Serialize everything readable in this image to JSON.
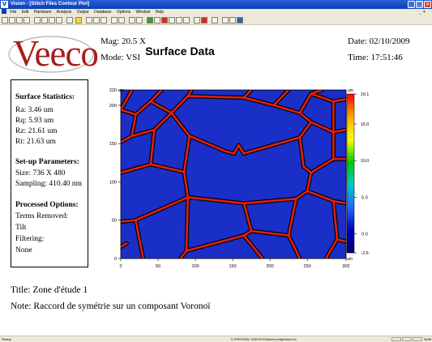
{
  "window": {
    "title": "Vision - [Stitch Files Contour Plot]",
    "app_icon_letter": "V",
    "minimize_glyph": "_",
    "maximize_glyph": "□",
    "close_glyph": "×"
  },
  "menu": {
    "items": [
      "File",
      "Edit",
      "Hardware",
      "Analysis",
      "Output",
      "Database",
      "Options",
      "Window",
      "Help"
    ],
    "mdi_controls": "_ ♦"
  },
  "logo": {
    "text": "Veeco"
  },
  "header": {
    "mag": "Mag: 20.5 X",
    "mode": "Mode: VSI",
    "title": "Surface Data",
    "date": "Date: 02/10/2009",
    "time": "Time: 17:51:46"
  },
  "stats": {
    "surface_heading": "Surface Statistics:",
    "ra": "Ra: 3.46 um",
    "rq": "Rq: 5.93 um",
    "rz": "Rz: 21.61 um",
    "rt": "Rt: 21.63 um",
    "setup_heading": "Set-up Parameters:",
    "size": "Size: 736 X 480",
    "sampling": "Sampling: 410.40 nm",
    "processed_heading": "Processed Options:",
    "terms_removed": "Terms Removed:",
    "tilt": "Tilt",
    "filtering": "Filtering:",
    "filter_none": "None"
  },
  "chart_data": {
    "type": "heatmap",
    "x_ticks": [
      0,
      50,
      100,
      150,
      200,
      250,
      302
    ],
    "y_ticks": [
      0,
      50,
      100,
      150,
      200,
      220
    ],
    "xlim": [
      0,
      302
    ],
    "ylim": [
      0,
      220
    ],
    "x_unit": "um",
    "y_unit": "um",
    "colorbar": {
      "unit": "um",
      "ticks": [
        19.1,
        15.0,
        10.0,
        5.0,
        0.0,
        -2.6
      ],
      "range": [
        -2.6,
        19.1
      ],
      "colors": [
        "#ff0000",
        "#ffaa00",
        "#ffff00",
        "#00cc00",
        "#00c8c8",
        "#2266ff",
        "#0000c0",
        "#000070"
      ]
    },
    "cell_color": "#1a2ec8",
    "edge_color": "#e02010",
    "edges": [
      [
        [
          0,
          194
        ],
        [
          15,
          220
        ]
      ],
      [
        [
          0,
          194
        ],
        [
          20,
          188
        ]
      ],
      [
        [
          20,
          188
        ],
        [
          40,
          205
        ]
      ],
      [
        [
          40,
          205
        ],
        [
          55,
          220
        ]
      ],
      [
        [
          20,
          188
        ],
        [
          15,
          160
        ]
      ],
      [
        [
          15,
          160
        ],
        [
          0,
          152
        ]
      ],
      [
        [
          15,
          160
        ],
        [
          45,
          168
        ]
      ],
      [
        [
          45,
          168
        ],
        [
          68,
          190
        ]
      ],
      [
        [
          68,
          190
        ],
        [
          40,
          205
        ]
      ],
      [
        [
          68,
          190
        ],
        [
          90,
          212
        ]
      ],
      [
        [
          90,
          212
        ],
        [
          95,
          220
        ]
      ],
      [
        [
          90,
          212
        ],
        [
          165,
          210
        ]
      ],
      [
        [
          165,
          210
        ],
        [
          175,
          220
        ]
      ],
      [
        [
          165,
          210
        ],
        [
          205,
          200
        ]
      ],
      [
        [
          205,
          200
        ],
        [
          225,
          220
        ]
      ],
      [
        [
          205,
          200
        ],
        [
          240,
          190
        ]
      ],
      [
        [
          240,
          190
        ],
        [
          255,
          215
        ]
      ],
      [
        [
          255,
          215
        ],
        [
          270,
          220
        ]
      ],
      [
        [
          255,
          215
        ],
        [
          285,
          205
        ]
      ],
      [
        [
          285,
          205
        ],
        [
          302,
          208
        ]
      ],
      [
        [
          240,
          190
        ],
        [
          255,
          178
        ]
      ],
      [
        [
          255,
          178
        ],
        [
          285,
          165
        ]
      ],
      [
        [
          285,
          165
        ],
        [
          302,
          168
        ]
      ],
      [
        [
          285,
          165
        ],
        [
          285,
          205
        ]
      ],
      [
        [
          45,
          168
        ],
        [
          40,
          123
        ]
      ],
      [
        [
          40,
          123
        ],
        [
          0,
          112
        ]
      ],
      [
        [
          40,
          123
        ],
        [
          85,
          113
        ]
      ],
      [
        [
          85,
          113
        ],
        [
          92,
          160
        ]
      ],
      [
        [
          92,
          160
        ],
        [
          68,
          190
        ]
      ],
      [
        [
          92,
          160
        ],
        [
          140,
          140
        ]
      ],
      [
        [
          140,
          140
        ],
        [
          152,
          137
        ]
      ],
      [
        [
          152,
          137
        ],
        [
          158,
          148
        ]
      ],
      [
        [
          158,
          148
        ],
        [
          165,
          137
        ]
      ],
      [
        [
          165,
          137
        ],
        [
          175,
          140
        ]
      ],
      [
        [
          175,
          140
        ],
        [
          240,
          158
        ]
      ],
      [
        [
          240,
          158
        ],
        [
          255,
          178
        ]
      ],
      [
        [
          240,
          158
        ],
        [
          245,
          120
        ]
      ],
      [
        [
          245,
          120
        ],
        [
          255,
          112
        ]
      ],
      [
        [
          255,
          112
        ],
        [
          285,
          130
        ]
      ],
      [
        [
          285,
          130
        ],
        [
          285,
          165
        ]
      ],
      [
        [
          285,
          130
        ],
        [
          302,
          130
        ]
      ],
      [
        [
          255,
          112
        ],
        [
          250,
          88
        ]
      ],
      [
        [
          250,
          88
        ],
        [
          285,
          75
        ]
      ],
      [
        [
          285,
          75
        ],
        [
          302,
          72
        ]
      ],
      [
        [
          285,
          75
        ],
        [
          290,
          25
        ]
      ],
      [
        [
          290,
          25
        ],
        [
          302,
          22
        ]
      ],
      [
        [
          290,
          25
        ],
        [
          275,
          0
        ]
      ],
      [
        [
          85,
          113
        ],
        [
          90,
          80
        ]
      ],
      [
        [
          90,
          80
        ],
        [
          165,
          72
        ]
      ],
      [
        [
          165,
          72
        ],
        [
          235,
          78
        ]
      ],
      [
        [
          235,
          78
        ],
        [
          250,
          88
        ]
      ],
      [
        [
          235,
          78
        ],
        [
          225,
          30
        ]
      ],
      [
        [
          225,
          30
        ],
        [
          240,
          0
        ]
      ],
      [
        [
          225,
          30
        ],
        [
          175,
          36
        ]
      ],
      [
        [
          175,
          36
        ],
        [
          165,
          72
        ]
      ],
      [
        [
          175,
          36
        ],
        [
          165,
          30
        ]
      ],
      [
        [
          165,
          30
        ],
        [
          88,
          10
        ]
      ],
      [
        [
          88,
          10
        ],
        [
          90,
          80
        ]
      ],
      [
        [
          88,
          10
        ],
        [
          80,
          0
        ]
      ],
      [
        [
          165,
          30
        ],
        [
          190,
          0
        ]
      ],
      [
        [
          0,
          48
        ],
        [
          20,
          50
        ]
      ],
      [
        [
          20,
          50
        ],
        [
          30,
          0
        ]
      ],
      [
        [
          20,
          50
        ],
        [
          90,
          80
        ]
      ],
      [
        [
          0,
          15
        ],
        [
          8,
          20
        ]
      ]
    ]
  },
  "notes": {
    "title": "Title:  Zone d'étude 1",
    "note": "Note:  Raccord de symétrie sur un composant Voronoï"
  },
  "status": {
    "ready": "Ready",
    "path": "C:\\PROGRA~1\\WYKO\\Vision\\config\\vision.ini",
    "num": "NUM"
  }
}
